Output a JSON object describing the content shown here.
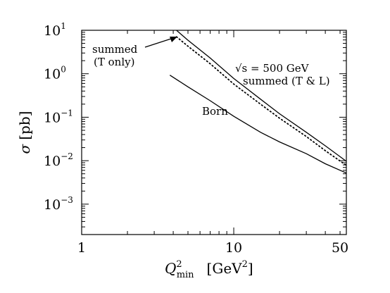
{
  "chart_data": {
    "type": "line",
    "x_scale": "log",
    "y_scale": "log",
    "xlim": [
      1,
      55
    ],
    "ylim": [
      0.0002,
      10
    ],
    "xlabel": {
      "sym": "Q",
      "sup": "2",
      "sub": "min",
      "unit_open": "[GeV",
      "unit_sup": "2",
      "unit_close": "]"
    },
    "ylabel": {
      "sym": "σ",
      "unit": "[pb]"
    },
    "x_ticks": [
      {
        "value": 1,
        "label": "1"
      },
      {
        "value": 10,
        "label": "10"
      },
      {
        "value": 50,
        "label": "50"
      }
    ],
    "y_ticks": [
      {
        "value": 10,
        "base": "10",
        "exp": "1"
      },
      {
        "value": 1,
        "base": "10",
        "exp": "0"
      },
      {
        "value": 0.1,
        "base": "10",
        "exp": "−1"
      },
      {
        "value": 0.01,
        "base": "10",
        "exp": "−2"
      },
      {
        "value": 0.001,
        "base": "10",
        "exp": "−3"
      }
    ],
    "series": [
      {
        "name": "summed (T & L)",
        "style": "solid",
        "x": [
          4.2,
          5,
          7,
          10,
          15,
          20,
          30,
          40,
          55
        ],
        "y": [
          10,
          5.9,
          2.3,
          0.78,
          0.26,
          0.12,
          0.045,
          0.022,
          0.0097
        ]
      },
      {
        "name": "summed (T only)",
        "style": "dotted",
        "x": [
          4.2,
          5,
          7,
          10,
          15,
          20,
          30,
          40,
          55
        ],
        "y": [
          7.1,
          4.3,
          1.7,
          0.58,
          0.2,
          0.095,
          0.036,
          0.017,
          0.0078
        ]
      },
      {
        "name": "Born",
        "style": "solid",
        "x": [
          3.8,
          5,
          7,
          10,
          15,
          20,
          30,
          40,
          55
        ],
        "y": [
          0.93,
          0.5,
          0.24,
          0.105,
          0.045,
          0.027,
          0.0145,
          0.0085,
          0.0052
        ]
      }
    ],
    "annotations": {
      "sqrt_s": "√s = 500 GeV",
      "tl": "summed (T & L)",
      "t_only_1": "summed",
      "t_only_2": "(T only)",
      "born": "Born"
    }
  }
}
